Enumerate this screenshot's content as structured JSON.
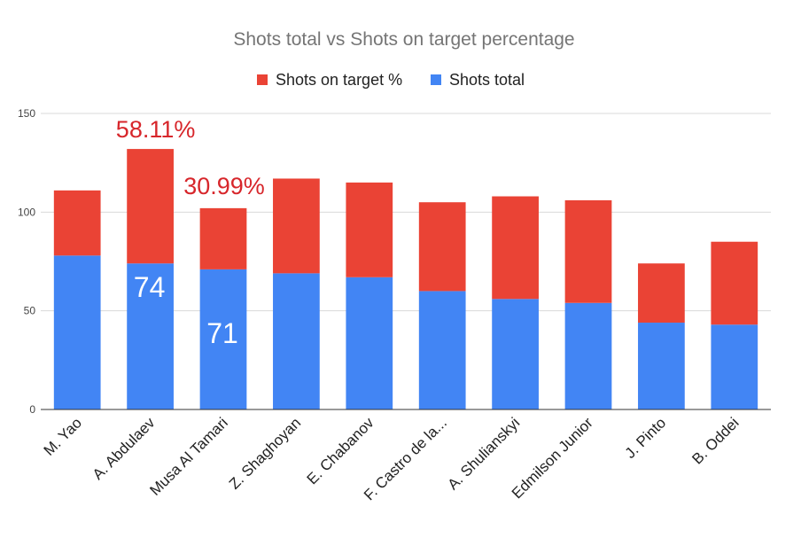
{
  "chart_data": {
    "type": "bar",
    "stacked": true,
    "title": "Shots total vs Shots on target percentage",
    "categories": [
      "M. Yao",
      "A. Abdulaev",
      "Musa Al Tamari",
      "Z. Shaghoyan",
      "E. Chabanov",
      "F. Castro de la...",
      "A. Shulianskyi",
      "Edmilson Junior",
      "J. Pinto",
      "B. Oddei"
    ],
    "series": [
      {
        "name": "Shots total",
        "color": "#4285f4",
        "values": [
          78,
          74,
          71,
          69,
          67,
          60,
          56,
          54,
          44,
          43
        ]
      },
      {
        "name": "Shots on target %",
        "color": "#ea4335",
        "values": [
          33,
          58,
          31,
          48,
          48,
          45,
          52,
          52,
          30,
          42
        ]
      }
    ],
    "ylim": [
      0,
      150
    ],
    "yticks": [
      "0",
      "50",
      "100",
      "150"
    ],
    "grid": true,
    "legend": "top",
    "annotations": [
      {
        "text": "58.11%",
        "category": "A. Abdulaev",
        "color": "#d7262b"
      },
      {
        "text": "30.99%",
        "category": "Musa Al Tamari",
        "color": "#d7262b"
      },
      {
        "text": "74",
        "category": "A. Abdulaev",
        "color": "#ffffff"
      },
      {
        "text": "71",
        "category": "Musa Al Tamari",
        "color": "#ffffff"
      }
    ]
  }
}
